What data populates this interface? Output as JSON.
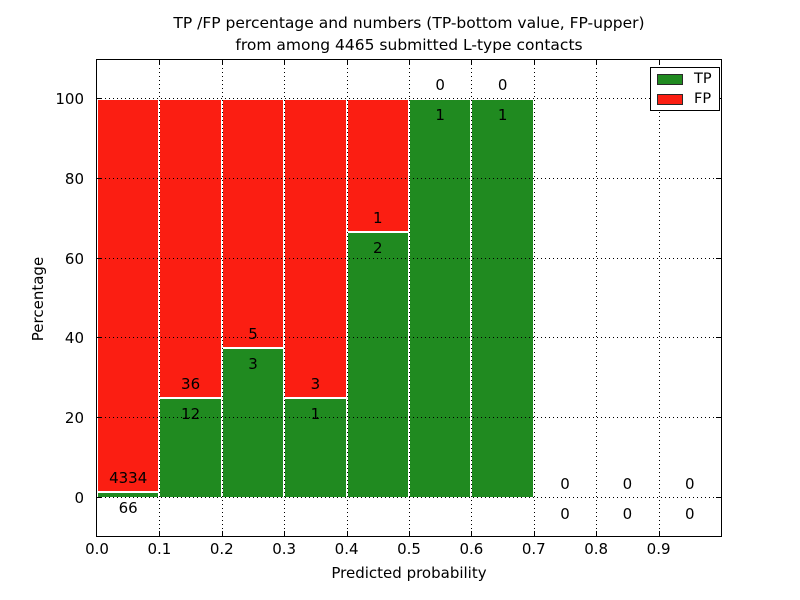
{
  "chart_data": {
    "type": "bar",
    "stacked": true,
    "title_line1": "TP /FP percentage and numbers (TP-bottom value, FP-upper)",
    "title_line2": "from among 4465 submitted L-type contacts",
    "xlabel": "Predicted probability",
    "ylabel": "Percentage",
    "x_tick_labels": [
      "0.0",
      "0.1",
      "0.2",
      "0.3",
      "0.4",
      "0.5",
      "0.6",
      "0.7",
      "0.8",
      "0.9"
    ],
    "y_tick_values": [
      0,
      20,
      40,
      60,
      80,
      100
    ],
    "y_tick_labels": [
      "0",
      "20",
      "40",
      "60",
      "80",
      "100"
    ],
    "xlim": [
      0.0,
      1.0
    ],
    "ylim": [
      -9.6,
      109.3
    ],
    "grid": {
      "style": "dotted",
      "color": "#000000",
      "above_bars": true
    },
    "bar_unit": "percentage of bin total",
    "bins": [
      {
        "range": [
          0.0,
          0.1
        ],
        "tp": 66,
        "fp": 4334
      },
      {
        "range": [
          0.1,
          0.2
        ],
        "tp": 12,
        "fp": 36
      },
      {
        "range": [
          0.2,
          0.3
        ],
        "tp": 3,
        "fp": 5
      },
      {
        "range": [
          0.3,
          0.4
        ],
        "tp": 1,
        "fp": 3
      },
      {
        "range": [
          0.4,
          0.5
        ],
        "tp": 2,
        "fp": 1
      },
      {
        "range": [
          0.5,
          0.6
        ],
        "tp": 1,
        "fp": 0
      },
      {
        "range": [
          0.6,
          0.7
        ],
        "tp": 1,
        "fp": 0
      },
      {
        "range": [
          0.7,
          0.8
        ],
        "tp": 0,
        "fp": 0
      },
      {
        "range": [
          0.8,
          0.9
        ],
        "tp": 0,
        "fp": 0
      },
      {
        "range": [
          0.9,
          1.0
        ],
        "tp": 0,
        "fp": 0
      }
    ],
    "legend": {
      "position": "upper right",
      "entries": [
        {
          "label": "TP",
          "color": "#208a20"
        },
        {
          "label": "FP",
          "color": "#fb1e12"
        }
      ]
    },
    "colors": {
      "tp_bar": "#208a20",
      "fp_bar": "#fb1e12",
      "bar_edge": "#ffffff",
      "frame": "#000000",
      "text": "#000000",
      "background": "#ffffff"
    }
  }
}
